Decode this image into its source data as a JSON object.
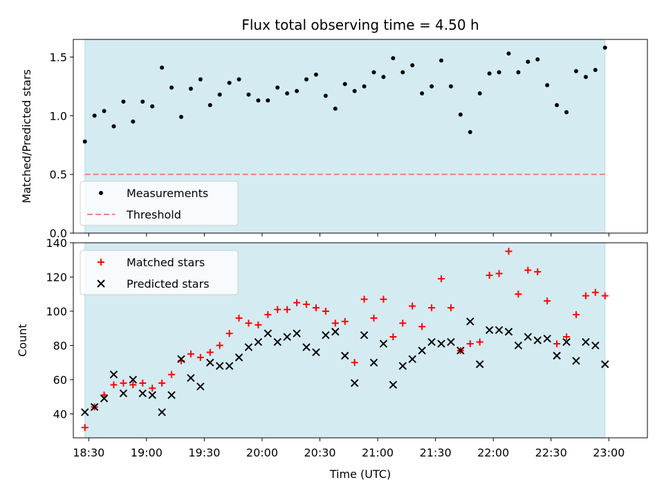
{
  "chart_data": [
    {
      "type": "scatter",
      "title": "Flux total observing time = 4.50 h",
      "xlabel": "",
      "ylabel": "Matched/Predicted stars",
      "ylim": [
        0,
        1.65
      ],
      "xlim": [
        1102,
        1400
      ],
      "yticks": [
        0.0,
        0.5,
        1.0,
        1.5
      ],
      "ytick_labels": [
        "0.0",
        "0.5",
        "1.0",
        "1.5"
      ],
      "observing_window_min": [
        1108,
        1378
      ],
      "shade_color": "#d4ebf2",
      "legend": {
        "location": "lower-left",
        "entries": [
          "Measurements",
          "Threshold"
        ]
      },
      "threshold": {
        "name": "Threshold",
        "value": 0.5,
        "color": "#f08080"
      },
      "series": [
        {
          "name": "Measurements",
          "color": "#000000",
          "x_min": [
            1108,
            1113,
            1118,
            1123,
            1128,
            1133,
            1138,
            1143,
            1148,
            1153,
            1158,
            1163,
            1168,
            1173,
            1178,
            1183,
            1188,
            1193,
            1198,
            1203,
            1208,
            1213,
            1218,
            1223,
            1228,
            1233,
            1238,
            1243,
            1248,
            1253,
            1258,
            1263,
            1268,
            1273,
            1278,
            1283,
            1288,
            1293,
            1298,
            1303,
            1308,
            1313,
            1318,
            1323,
            1328,
            1333,
            1338,
            1343,
            1348,
            1353,
            1358,
            1363,
            1368,
            1373,
            1378
          ],
          "values": [
            0.78,
            1.0,
            1.04,
            0.91,
            1.12,
            0.95,
            1.12,
            1.08,
            1.41,
            1.24,
            0.99,
            1.23,
            1.31,
            1.09,
            1.18,
            1.28,
            1.31,
            1.18,
            1.13,
            1.13,
            1.24,
            1.19,
            1.21,
            1.31,
            1.35,
            1.17,
            1.06,
            1.27,
            1.21,
            1.25,
            1.37,
            1.33,
            1.49,
            1.37,
            1.43,
            1.19,
            1.25,
            1.47,
            1.25,
            1.01,
            0.86,
            1.19,
            1.36,
            1.37,
            1.53,
            1.37,
            1.46,
            1.48,
            1.26,
            1.09,
            1.03,
            1.38,
            1.33,
            1.39,
            1.58
          ]
        }
      ]
    },
    {
      "type": "scatter",
      "title": "",
      "xlabel": "Time (UTC)",
      "ylabel": "Count",
      "ylim": [
        26,
        140
      ],
      "xlim": [
        1102,
        1400
      ],
      "yticks": [
        40,
        60,
        80,
        100,
        120,
        140
      ],
      "ytick_labels": [
        "40",
        "60",
        "80",
        "100",
        "120",
        "140"
      ],
      "xticks_min": [
        1110,
        1140,
        1170,
        1200,
        1230,
        1260,
        1290,
        1320,
        1350,
        1380
      ],
      "xtick_labels": [
        "18:30",
        "19:00",
        "19:30",
        "20:00",
        "20:30",
        "21:00",
        "21:30",
        "22:00",
        "22:30",
        "23:00"
      ],
      "observing_window_min": [
        1108,
        1378
      ],
      "shade_color": "#d4ebf2",
      "legend": {
        "location": "upper-left",
        "entries": [
          "Matched stars",
          "Predicted stars"
        ]
      },
      "series": [
        {
          "name": "Matched stars",
          "marker": "plus",
          "color": "#ff0000",
          "x_min": [
            1108,
            1113,
            1118,
            1123,
            1128,
            1133,
            1138,
            1143,
            1148,
            1153,
            1158,
            1163,
            1168,
            1173,
            1178,
            1183,
            1188,
            1193,
            1198,
            1203,
            1208,
            1213,
            1218,
            1223,
            1228,
            1233,
            1238,
            1243,
            1248,
            1253,
            1258,
            1263,
            1268,
            1273,
            1278,
            1283,
            1288,
            1293,
            1298,
            1303,
            1308,
            1313,
            1318,
            1323,
            1328,
            1333,
            1338,
            1343,
            1348,
            1353,
            1358,
            1363,
            1368,
            1373,
            1378
          ],
          "values": [
            32,
            44,
            51,
            57,
            58,
            57,
            58,
            55,
            58,
            63,
            71,
            75,
            73,
            76,
            80,
            87,
            96,
            93,
            92,
            98,
            101,
            101,
            105,
            104,
            102,
            100,
            93,
            94,
            70,
            107,
            96,
            107,
            85,
            93,
            103,
            91,
            102,
            119,
            102,
            77,
            81,
            82,
            121,
            122,
            135,
            110,
            124,
            123,
            106,
            81,
            85,
            98,
            109,
            111,
            109
          ]
        },
        {
          "name": "Predicted stars",
          "marker": "x",
          "color": "#000000",
          "x_min": [
            1108,
            1113,
            1118,
            1123,
            1128,
            1133,
            1138,
            1143,
            1148,
            1153,
            1158,
            1163,
            1168,
            1173,
            1178,
            1183,
            1188,
            1193,
            1198,
            1203,
            1208,
            1213,
            1218,
            1223,
            1228,
            1233,
            1238,
            1243,
            1248,
            1253,
            1258,
            1263,
            1268,
            1273,
            1278,
            1283,
            1288,
            1293,
            1298,
            1303,
            1308,
            1313,
            1318,
            1323,
            1328,
            1333,
            1338,
            1343,
            1348,
            1353,
            1358,
            1363,
            1368,
            1373,
            1378
          ],
          "values": [
            41,
            44,
            49,
            63,
            52,
            60,
            52,
            51,
            41,
            51,
            72,
            61,
            56,
            70,
            68,
            68,
            73,
            79,
            82,
            87,
            82,
            85,
            87,
            79,
            76,
            86,
            88,
            74,
            58,
            86,
            70,
            81,
            57,
            68,
            72,
            77,
            82,
            81,
            82,
            77,
            94,
            69,
            89,
            89,
            88,
            80,
            85,
            83,
            84,
            74,
            82,
            71,
            82,
            80,
            69
          ]
        }
      ]
    }
  ]
}
